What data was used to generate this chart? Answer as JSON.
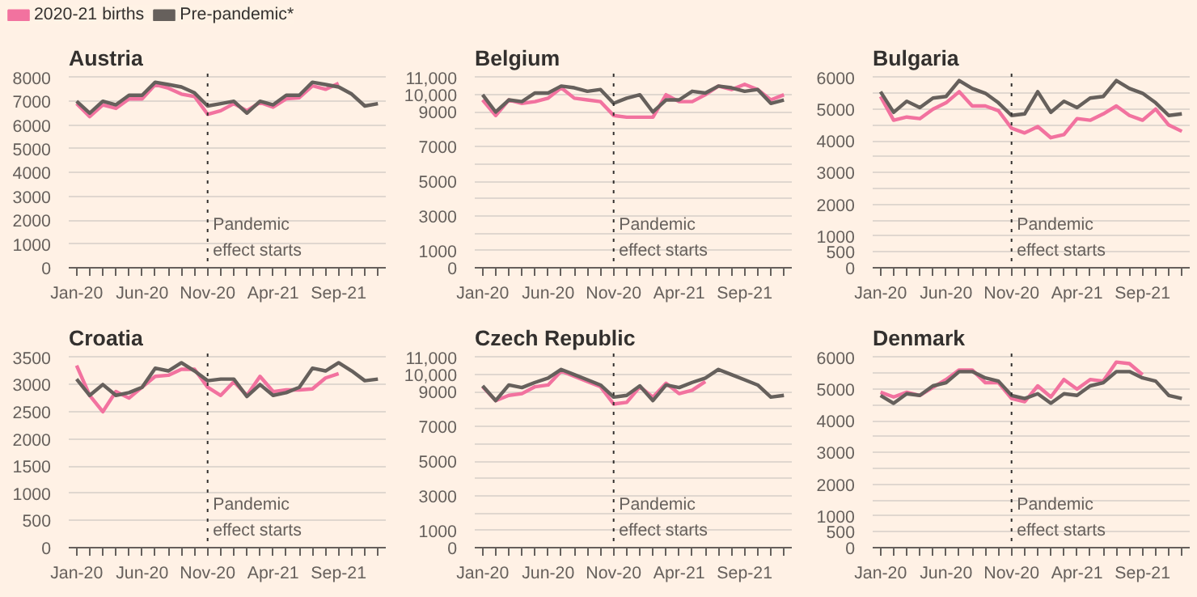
{
  "chart_data": [
    {
      "type": "line",
      "title": "Austria",
      "legend": "top left",
      "categories": [
        "Jan-20",
        null,
        null,
        null,
        null,
        "Jun-20",
        null,
        null,
        null,
        null,
        "Nov-20",
        null,
        null,
        null,
        null,
        "Apr-21",
        null,
        null,
        null,
        null,
        "Sep-21",
        null,
        null,
        null
      ],
      "ylim": [
        0,
        8000
      ],
      "yticks": [
        0,
        1000,
        2000,
        3000,
        4000,
        5000,
        6000,
        7000,
        8000
      ],
      "grid": "y",
      "ref_lines": [
        {
          "axis": "x",
          "value": "Nov-20",
          "label": "Pandemic\neffect starts",
          "line_style": "dotted"
        }
      ],
      "series": [
        {
          "name": "2020-21 births",
          "color": "#f2729f",
          "values": [
            6900,
            6350,
            6850,
            6700,
            7100,
            7100,
            7700,
            7550,
            7300,
            7200,
            6450,
            6600,
            6900,
            6600,
            6950,
            6750,
            7100,
            7150,
            7650,
            7500,
            7750,
            null,
            null,
            null
          ]
        },
        {
          "name": "Pre-pandemic*",
          "color": "#66605c",
          "values": [
            7000,
            6500,
            7000,
            6850,
            7250,
            7250,
            7800,
            7700,
            7600,
            7350,
            6800,
            6900,
            7000,
            6500,
            7000,
            6850,
            7250,
            7250,
            7800,
            7700,
            7600,
            7300,
            6800,
            6900
          ]
        }
      ]
    },
    {
      "type": "line",
      "title": "Belgium",
      "categories": [
        "Jan-20",
        null,
        null,
        null,
        null,
        "Jun-20",
        null,
        null,
        null,
        null,
        "Nov-20",
        null,
        null,
        null,
        null,
        "Apr-21",
        null,
        null,
        null,
        null,
        "Sep-21",
        null,
        null,
        null
      ],
      "ylim": [
        0,
        11000
      ],
      "yticks": [
        0,
        1000,
        {
          "value": 2000,
          "label": null
        },
        3000,
        {
          "value": 4000,
          "label": null
        },
        5000,
        {
          "value": 6000,
          "label": null
        },
        7000,
        {
          "value": 8000,
          "label": null
        },
        9000,
        {
          "value": 10000,
          "label": "10,000"
        },
        {
          "value": 11000,
          "label": "11,000"
        }
      ],
      "grid": "y",
      "ref_lines": [
        {
          "axis": "x",
          "value": "Nov-20",
          "label": "Pandemic\neffect starts",
          "line_style": "dotted"
        }
      ],
      "series": [
        {
          "color": "#f2729f",
          "values": [
            9700,
            8800,
            9700,
            9500,
            9600,
            9800,
            10400,
            9800,
            9700,
            9600,
            8800,
            8700,
            8700,
            8700,
            10000,
            9600,
            9600,
            10000,
            10500,
            10300,
            10600,
            10300,
            9700,
            10000
          ]
        },
        {
          "color": "#66605c",
          "values": [
            10000,
            9000,
            9700,
            9600,
            10100,
            10100,
            10500,
            10400,
            10200,
            10300,
            9500,
            9800,
            10000,
            9000,
            9700,
            9700,
            10200,
            10100,
            10500,
            10400,
            10200,
            10300,
            9500,
            9700
          ]
        }
      ]
    },
    {
      "type": "line",
      "title": "Bulgaria",
      "categories": [
        "Jan-20",
        null,
        null,
        null,
        null,
        "Jun-20",
        null,
        null,
        null,
        null,
        "Nov-20",
        null,
        null,
        null,
        null,
        "Apr-21",
        null,
        null,
        null,
        null,
        "Sep-21",
        null,
        null,
        null
      ],
      "ylim": [
        0,
        6000
      ],
      "yticks": [
        0,
        500,
        1000,
        {
          "value": 1500,
          "label": null
        },
        2000,
        {
          "value": 2500,
          "label": null
        },
        3000,
        {
          "value": 3500,
          "label": null
        },
        4000,
        {
          "value": 4500,
          "label": null
        },
        5000,
        {
          "value": 5500,
          "label": null
        },
        6000
      ],
      "grid": "y",
      "ref_lines": [
        {
          "axis": "x",
          "value": "Nov-20",
          "label": "Pandemic\neffect starts",
          "line_style": "dotted"
        }
      ],
      "series": [
        {
          "color": "#f2729f",
          "values": [
            5400,
            4650,
            4750,
            4700,
            5000,
            5200,
            5550,
            5100,
            5100,
            4950,
            4400,
            4250,
            4450,
            4100,
            4200,
            4700,
            4650,
            4850,
            5100,
            4800,
            4650,
            5000,
            4500,
            4300
          ]
        },
        {
          "color": "#66605c",
          "values": [
            5550,
            4900,
            5250,
            5050,
            5350,
            5400,
            5900,
            5650,
            5500,
            5200,
            4800,
            4850,
            5550,
            4900,
            5250,
            5050,
            5350,
            5400,
            5900,
            5650,
            5500,
            5200,
            4800,
            4850
          ]
        }
      ]
    },
    {
      "type": "line",
      "title": "Croatia",
      "categories": [
        "Jan-20",
        null,
        null,
        null,
        null,
        "Jun-20",
        null,
        null,
        null,
        null,
        "Nov-20",
        null,
        null,
        null,
        null,
        "Apr-21",
        null,
        null,
        null,
        null,
        "Sep-21",
        null,
        null,
        null
      ],
      "ylim": [
        0,
        3500
      ],
      "yticks": [
        0,
        500,
        1000,
        1500,
        2000,
        2500,
        3000,
        3500
      ],
      "grid": "y",
      "ref_lines": [
        {
          "axis": "x",
          "value": "Nov-20",
          "label": "Pandemic\neffect starts",
          "line_style": "dotted"
        }
      ],
      "series": [
        {
          "color": "#f2729f",
          "values": [
            3350,
            2800,
            2500,
            2870,
            2750,
            2950,
            3150,
            3170,
            3280,
            3280,
            2950,
            2800,
            3050,
            2800,
            3150,
            2870,
            2900,
            2900,
            2920,
            3120,
            3200,
            null,
            null,
            null
          ]
        },
        {
          "color": "#66605c",
          "values": [
            3100,
            2800,
            3000,
            2800,
            2850,
            2950,
            3300,
            3250,
            3400,
            3250,
            3070,
            3100,
            3100,
            2780,
            3000,
            2800,
            2850,
            2950,
            3300,
            3250,
            3400,
            3250,
            3070,
            3100
          ]
        }
      ]
    },
    {
      "type": "line",
      "title": "Czech Republic",
      "categories": [
        "Jan-20",
        null,
        null,
        null,
        null,
        "Jun-20",
        null,
        null,
        null,
        null,
        "Nov-20",
        null,
        null,
        null,
        null,
        "Apr-21",
        null,
        null,
        null,
        null,
        "Sep-21",
        null,
        null,
        null
      ],
      "ylim": [
        0,
        11000
      ],
      "yticks": [
        0,
        1000,
        {
          "value": 2000,
          "label": null
        },
        3000,
        {
          "value": 4000,
          "label": null
        },
        5000,
        {
          "value": 6000,
          "label": null
        },
        7000,
        {
          "value": 8000,
          "label": null
        },
        9000,
        {
          "value": 10000,
          "label": "10,000"
        },
        {
          "value": 11000,
          "label": "11,000"
        }
      ],
      "grid": "y",
      "ref_lines": [
        {
          "axis": "x",
          "value": "Nov-20",
          "label": "Pandemic\neffect starts",
          "line_style": "dotted"
        }
      ],
      "series": [
        {
          "color": "#f2729f",
          "values": [
            9300,
            8500,
            8800,
            8900,
            9300,
            9400,
            10200,
            9900,
            9600,
            9300,
            8300,
            8400,
            9300,
            8700,
            9500,
            8900,
            9100,
            9600,
            null,
            null,
            null,
            null,
            null,
            null
          ]
        },
        {
          "color": "#66605c",
          "values": [
            9350,
            8500,
            9400,
            9250,
            9550,
            9800,
            10300,
            10000,
            9700,
            9400,
            8700,
            8800,
            9350,
            8500,
            9400,
            9250,
            9550,
            9800,
            10300,
            10000,
            9700,
            9400,
            8700,
            8800
          ]
        }
      ]
    },
    {
      "type": "line",
      "title": "Denmark",
      "categories": [
        "Jan-20",
        null,
        null,
        null,
        null,
        "Jun-20",
        null,
        null,
        null,
        null,
        "Nov-20",
        null,
        null,
        null,
        null,
        "Apr-21",
        null,
        null,
        null,
        null,
        "Sep-21",
        null,
        null,
        null
      ],
      "ylim": [
        0,
        6000
      ],
      "yticks": [
        0,
        500,
        1000,
        {
          "value": 1500,
          "label": null
        },
        2000,
        {
          "value": 2500,
          "label": null
        },
        3000,
        {
          "value": 3500,
          "label": null
        },
        4000,
        {
          "value": 4500,
          "label": null
        },
        5000,
        {
          "value": 5500,
          "label": null
        },
        6000
      ],
      "grid": "y",
      "ref_lines": [
        {
          "axis": "x",
          "value": "Nov-20",
          "label": "Pandemic\neffect starts",
          "line_style": "dotted"
        }
      ],
      "series": [
        {
          "color": "#f2729f",
          "values": [
            4900,
            4750,
            4900,
            4800,
            5050,
            5300,
            5600,
            5600,
            5200,
            5200,
            4700,
            4600,
            5100,
            4750,
            5300,
            5000,
            5300,
            5250,
            5850,
            5800,
            5450,
            null,
            null,
            null
          ]
        },
        {
          "color": "#66605c",
          "values": [
            4800,
            4550,
            4850,
            4800,
            5100,
            5200,
            5550,
            5550,
            5350,
            5250,
            4800,
            4700,
            4850,
            4550,
            4850,
            4800,
            5100,
            5200,
            5550,
            5550,
            5350,
            5250,
            4800,
            4700
          ]
        }
      ]
    }
  ]
}
